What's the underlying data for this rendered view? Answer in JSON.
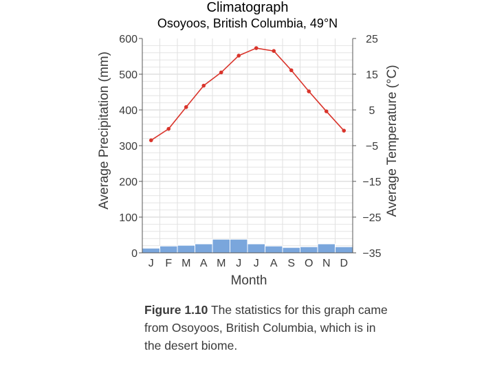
{
  "chart_data": {
    "type": "bar+line",
    "title": "Climatograph",
    "subtitle": "Osoyoos, British Columbia, 49°N",
    "xlabel": "Month",
    "ylabel_left": "Average Precipitation (mm)",
    "ylabel_right": "Average Temperature (°C)",
    "categories": [
      "J",
      "F",
      "M",
      "A",
      "M",
      "J",
      "J",
      "A",
      "S",
      "O",
      "N",
      "D"
    ],
    "ylim_left": [
      0,
      600
    ],
    "yticks_left": [
      "0",
      "100",
      "200",
      "300",
      "400",
      "500",
      "600"
    ],
    "ylim_right": [
      -35,
      25
    ],
    "yticks_right": [
      "−35",
      "−25",
      "−15",
      "−5",
      "5",
      "15",
      "25"
    ],
    "grid": true,
    "series": [
      {
        "name": "Average Precipitation (mm)",
        "kind": "bar",
        "axis": "left",
        "color": "#7aa6dc",
        "values": [
          13,
          19,
          21,
          25,
          38,
          38,
          25,
          19,
          15,
          17,
          25,
          17
        ]
      },
      {
        "name": "Average Temperature (°C)",
        "kind": "line",
        "axis": "right",
        "color": "#d9342b",
        "values": [
          -3.5,
          -0.3,
          5.8,
          11.8,
          15.5,
          20.2,
          22.3,
          21.5,
          16.1,
          10.2,
          4.6,
          -0.8
        ]
      }
    ]
  },
  "caption": {
    "label": "Figure 1.10",
    "text": "The statistics for this graph came from Osoyoos, British Columbia, which is in the desert biome."
  }
}
